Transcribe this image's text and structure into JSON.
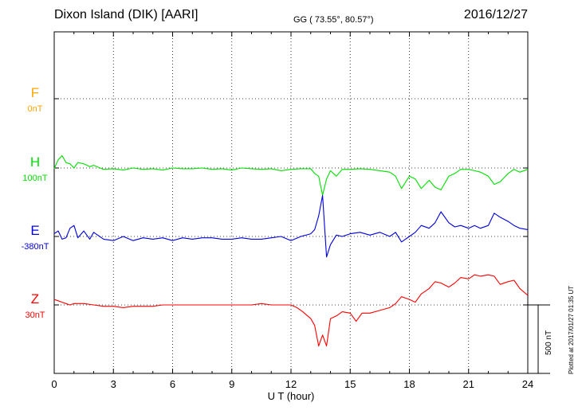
{
  "header": {
    "station": "Dixon Island (DIK)  [AARI]",
    "coords": "GG ( 73.55°,  80.57°)",
    "date": "2016/12/27",
    "plotted": "Plotted at 2017/01/27 01:35 UT"
  },
  "chart_data": {
    "type": "line",
    "xlabel": "U T (hour)",
    "xlim": [
      0,
      24
    ],
    "xticks": [
      "0",
      "3",
      "6",
      "9",
      "12",
      "15",
      "18",
      "21",
      "24"
    ],
    "scale_bar": "500 nT",
    "series": [
      {
        "name": "F",
        "offset": "0nT",
        "color": "#ffa500",
        "x": [],
        "y": []
      },
      {
        "name": "H",
        "offset": "100nT",
        "color": "#00e000",
        "x": [
          0,
          0.2,
          0.4,
          0.6,
          0.8,
          1,
          1.2,
          1.5,
          1.8,
          2,
          2.5,
          3,
          3.5,
          4,
          4.5,
          5,
          5.5,
          6,
          6.5,
          7,
          7.5,
          8,
          8.5,
          9,
          9.5,
          10,
          10.5,
          11,
          11.5,
          12,
          12.5,
          13,
          13.2,
          13.4,
          13.6,
          13.8,
          14,
          14.3,
          14.6,
          15,
          15.5,
          16,
          16.5,
          17,
          17.3,
          17.6,
          18,
          18.3,
          18.6,
          19,
          19.3,
          19.6,
          20,
          20.3,
          20.6,
          21,
          21.3,
          21.6,
          22,
          22.3,
          22.6,
          23,
          23.3,
          23.6,
          24
        ],
        "y": [
          -5,
          60,
          90,
          40,
          30,
          0,
          40,
          30,
          10,
          20,
          -10,
          -5,
          -15,
          0,
          -10,
          -5,
          -15,
          0,
          -5,
          -5,
          0,
          -10,
          -5,
          -15,
          0,
          -5,
          -10,
          -5,
          -20,
          -10,
          -5,
          -5,
          -40,
          -60,
          -200,
          -80,
          -20,
          -60,
          -10,
          -10,
          -5,
          -10,
          -20,
          -30,
          -60,
          -150,
          -60,
          -80,
          -150,
          -90,
          -140,
          -160,
          -60,
          -40,
          -10,
          -10,
          -20,
          -30,
          -60,
          -120,
          -100,
          -40,
          -10,
          -30,
          -10
        ]
      },
      {
        "name": "E",
        "offset": "-380nT",
        "color": "#0000dd",
        "x": [
          0,
          0.2,
          0.4,
          0.6,
          0.8,
          1,
          1.2,
          1.5,
          1.8,
          2,
          2.5,
          3,
          3.5,
          4,
          4.5,
          5,
          5.5,
          6,
          6.5,
          7,
          7.5,
          8,
          8.5,
          9,
          9.5,
          10,
          10.5,
          11,
          11.5,
          12,
          12.5,
          13,
          13.2,
          13.4,
          13.6,
          13.8,
          14,
          14.3,
          14.6,
          15,
          15.5,
          16,
          16.5,
          17,
          17.3,
          17.6,
          18,
          18.3,
          18.6,
          19,
          19.3,
          19.6,
          20,
          20.3,
          20.6,
          21,
          21.3,
          21.6,
          22,
          22.3,
          22.6,
          23,
          23.3,
          23.6,
          24
        ],
        "y": [
          20,
          40,
          -20,
          -10,
          60,
          80,
          -10,
          40,
          -20,
          30,
          -20,
          -30,
          0,
          -30,
          -10,
          -20,
          -10,
          -30,
          -10,
          -20,
          -10,
          -10,
          -20,
          -20,
          -10,
          -20,
          -20,
          -10,
          0,
          -30,
          0,
          20,
          50,
          150,
          300,
          -150,
          -60,
          10,
          0,
          20,
          30,
          10,
          30,
          0,
          30,
          -40,
          0,
          30,
          80,
          60,
          100,
          180,
          100,
          70,
          80,
          60,
          80,
          60,
          80,
          170,
          140,
          110,
          80,
          60,
          50
        ]
      },
      {
        "name": "Z",
        "offset": "30nT",
        "color": "#ff0000",
        "x": [
          0,
          0.2,
          0.4,
          0.6,
          0.8,
          1,
          1.5,
          2,
          2.5,
          3,
          3.5,
          4,
          4.5,
          5,
          5.5,
          6,
          6.5,
          7,
          7.5,
          8,
          8.5,
          9,
          9.5,
          10,
          10.5,
          11,
          11.5,
          12,
          12.3,
          12.6,
          13,
          13.2,
          13.4,
          13.6,
          13.8,
          14,
          14.3,
          14.6,
          15,
          15.3,
          15.6,
          16,
          16.5,
          17,
          17.3,
          17.6,
          18,
          18.3,
          18.6,
          19,
          19.3,
          19.6,
          20,
          20.3,
          20.6,
          21,
          21.3,
          21.6,
          22,
          22.3,
          22.6,
          23,
          23.3,
          23.6,
          24
        ],
        "y": [
          40,
          30,
          20,
          10,
          0,
          10,
          10,
          0,
          -10,
          -10,
          -20,
          -10,
          -10,
          -10,
          0,
          0,
          0,
          0,
          0,
          0,
          0,
          0,
          0,
          0,
          10,
          0,
          0,
          0,
          -20,
          -50,
          -100,
          -150,
          -300,
          -220,
          -300,
          -100,
          -80,
          -50,
          -60,
          -120,
          -60,
          -60,
          -40,
          -20,
          10,
          60,
          40,
          20,
          80,
          120,
          170,
          160,
          130,
          160,
          200,
          190,
          220,
          210,
          220,
          210,
          150,
          170,
          180,
          120,
          70
        ]
      }
    ]
  }
}
